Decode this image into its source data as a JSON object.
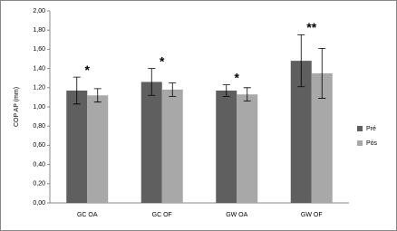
{
  "chart_data": {
    "type": "bar",
    "y_label": "COP AP (mm)",
    "categories": [
      "GC OA",
      "GC OF",
      "GW OA",
      "GW OF"
    ],
    "series": [
      {
        "name": "Pré",
        "color": "#5f5f5f",
        "values": [
          1.17,
          1.26,
          1.17,
          1.48
        ],
        "errors": [
          0.14,
          0.14,
          0.06,
          0.27
        ]
      },
      {
        "name": "Pós",
        "color": "#a8a8a8",
        "values": [
          1.12,
          1.18,
          1.13,
          1.35
        ],
        "errors": [
          0.07,
          0.07,
          0.07,
          0.26
        ]
      }
    ],
    "annotations": [
      "*",
      "*",
      "*",
      "**"
    ],
    "ylim": [
      0,
      2
    ],
    "yticks": [
      {
        "value": 0,
        "label": "0,00"
      },
      {
        "value": 0.2,
        "label": "0,20"
      },
      {
        "value": 0.4,
        "label": "0,40"
      },
      {
        "value": 0.6,
        "label": "0,60"
      },
      {
        "value": 0.8,
        "label": "0,80"
      },
      {
        "value": 1,
        "label": "1,00"
      },
      {
        "value": 1.2,
        "label": "1,20"
      },
      {
        "value": 1.4,
        "label": "1,40"
      },
      {
        "value": 1.6,
        "label": "1,60"
      },
      {
        "value": 1.8,
        "label": "1,80"
      },
      {
        "value": 2,
        "label": "2,00"
      }
    ],
    "legend": "right",
    "grid": false
  }
}
